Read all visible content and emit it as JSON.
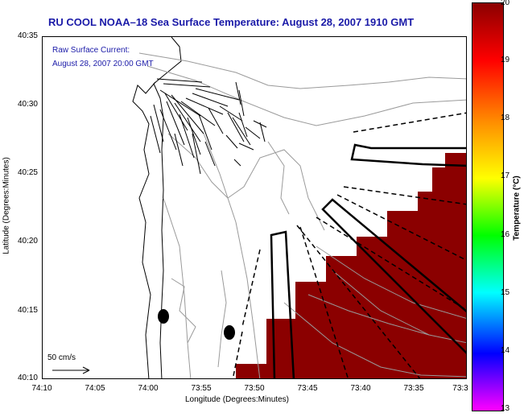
{
  "title": "RU COOL  NOAA–18  Sea Surface Temperature:  August 28, 2007 1910 GMT",
  "legend": {
    "current_label": "Raw Surface Current:",
    "current_date": "August 28, 2007 20:00 GMT",
    "scale_text": "50 cm/s"
  },
  "axes": {
    "xlabel": "Longitude (Degrees:Minutes)",
    "ylabel": "Latitude (Degrees:Minutes)",
    "xticks": [
      "74:10",
      "74:05",
      "74:00",
      "73:55",
      "73:50",
      "73:45",
      "73:40",
      "73:35",
      "73:3"
    ],
    "yticks": [
      "40:35",
      "40:30",
      "40:25",
      "40:20",
      "40:15",
      "40:10"
    ]
  },
  "colorbar": {
    "label": "Temperature (°C)",
    "ticks": [
      "20",
      "19",
      "18",
      "17",
      "16",
      "15",
      "14",
      "13"
    ],
    "colors": [
      "#8b0000",
      "#ff0000",
      "#ff8c00",
      "#ffff00",
      "#00ff00",
      "#00ffff",
      "#0000ff",
      "#ff00ff"
    ]
  },
  "colors": {
    "sst_fill": "#8b0000",
    "title_color": "#1a1aa8",
    "contour": "#9a9a9a"
  }
}
